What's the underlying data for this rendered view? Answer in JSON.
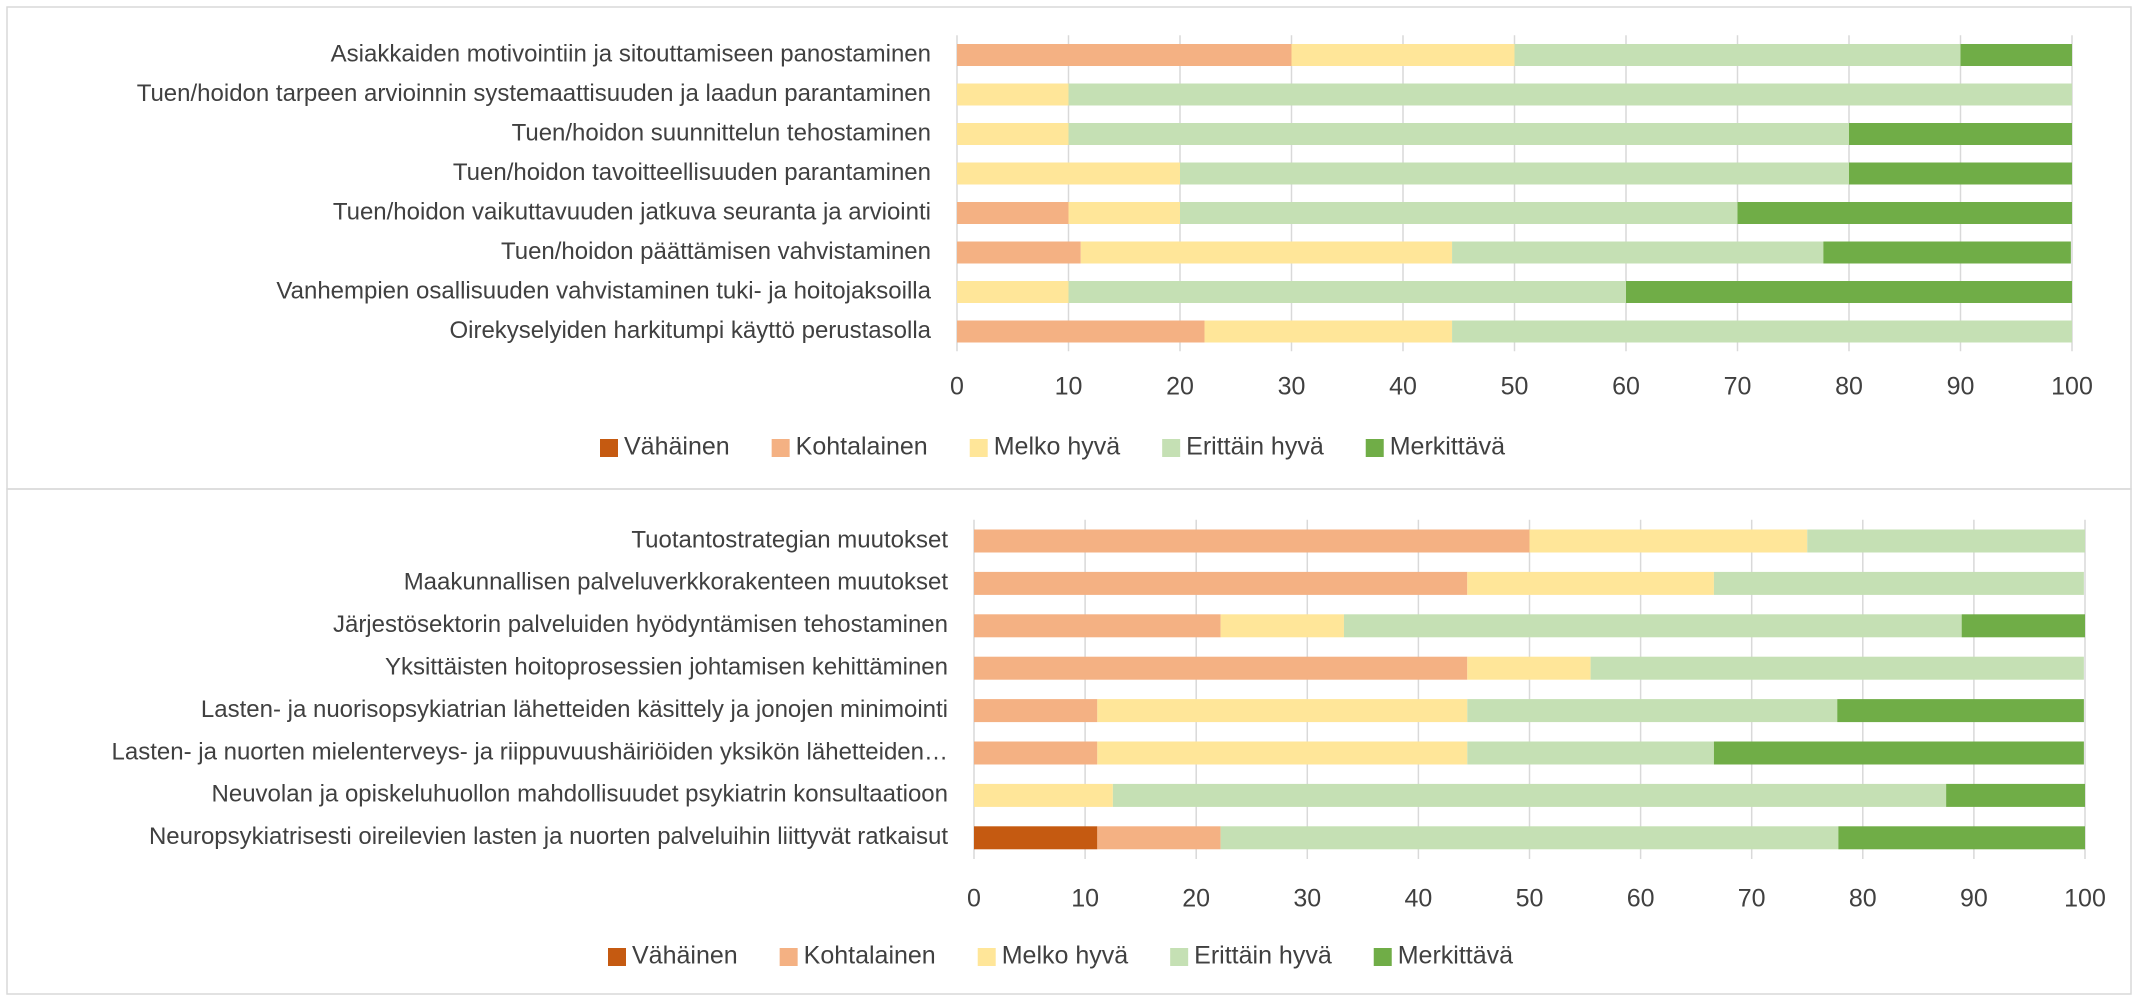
{
  "chart_data": [
    {
      "type": "stacked_bar",
      "categories": [
        "Asiakkaiden motivointiin ja sitouttamiseen panostaminen",
        "Tuen/hoidon tarpeen arvioinnin systemaattisuuden ja laadun parantaminen",
        "Tuen/hoidon suunnittelun tehostaminen",
        "Tuen/hoidon tavoitteellisuuden parantaminen",
        "Tuen/hoidon vaikuttavuuden jatkuva seuranta ja arviointi",
        "Tuen/hoidon päättämisen vahvistaminen",
        "Vanhempien osallisuuden vahvistaminen tuki- ja hoitojaksoilla",
        "Oirekyselyiden harkitumpi käyttö perustasolla"
      ],
      "series": [
        {
          "name": "Vähäinen",
          "color": "#c55a11",
          "values": [
            0,
            0,
            0,
            0,
            0,
            0,
            0,
            0
          ]
        },
        {
          "name": "Kohtalainen",
          "color": "#f4b183",
          "values": [
            30,
            0,
            0,
            0,
            10,
            11.1,
            0,
            22.2
          ]
        },
        {
          "name": "Melko hyvä",
          "color": "#ffe699",
          "values": [
            20,
            10,
            10,
            20,
            10,
            33.3,
            10,
            22.2
          ]
        },
        {
          "name": "Erittäin hyvä",
          "color": "#c5e0b4",
          "values": [
            40,
            90,
            70,
            60,
            50,
            33.3,
            50,
            55.6
          ]
        },
        {
          "name": "Merkittävä",
          "color": "#70ad47",
          "values": [
            10,
            0,
            20,
            20,
            30,
            22.2,
            40,
            0
          ]
        }
      ],
      "xlim": [
        0,
        100
      ],
      "xticks": [
        0,
        10,
        20,
        30,
        40,
        50,
        60,
        70,
        80,
        90,
        100
      ],
      "grid": true,
      "legend": "bottom"
    },
    {
      "type": "stacked_bar",
      "categories": [
        "Tuotantostrategian muutokset",
        "Maakunnallisen palveluverkkorakenteen muutokset",
        "Järjestösektorin palveluiden hyödyntämisen tehostaminen",
        "Yksittäisten hoitoprosessien johtamisen kehittäminen",
        "Lasten- ja nuorisopsykiatrian lähetteiden käsittely ja jonojen minimointi",
        "Lasten- ja nuorten mielenterveys- ja riippuvuushäiriöiden yksikön lähetteiden…",
        "Neuvolan ja opiskeluhuollon mahdollisuudet psykiatrin konsultaatioon",
        "Neuropsykiatrisesti oireilevien lasten ja nuorten palveluihin liittyvät ratkaisut"
      ],
      "series": [
        {
          "name": "Vähäinen",
          "color": "#c55a11",
          "values": [
            0,
            0,
            0,
            0,
            0,
            0,
            0,
            11.1
          ]
        },
        {
          "name": "Kohtalainen",
          "color": "#f4b183",
          "values": [
            50,
            44.4,
            22.2,
            44.4,
            11.1,
            11.1,
            0,
            11.1
          ]
        },
        {
          "name": "Melko hyvä",
          "color": "#ffe699",
          "values": [
            25,
            22.2,
            11.1,
            11.1,
            33.3,
            33.3,
            12.5,
            0
          ]
        },
        {
          "name": "Erittäin hyvä",
          "color": "#c5e0b4",
          "values": [
            25,
            33.3,
            55.6,
            44.4,
            33.3,
            22.2,
            75,
            55.6
          ]
        },
        {
          "name": "Merkittävä",
          "color": "#70ad47",
          "values": [
            0,
            0,
            11.1,
            0,
            22.2,
            33.3,
            12.5,
            22.2
          ]
        }
      ],
      "xlim": [
        0,
        100
      ],
      "xticks": [
        0,
        10,
        20,
        30,
        40,
        50,
        60,
        70,
        80,
        90,
        100
      ],
      "grid": true,
      "legend": "bottom"
    }
  ]
}
